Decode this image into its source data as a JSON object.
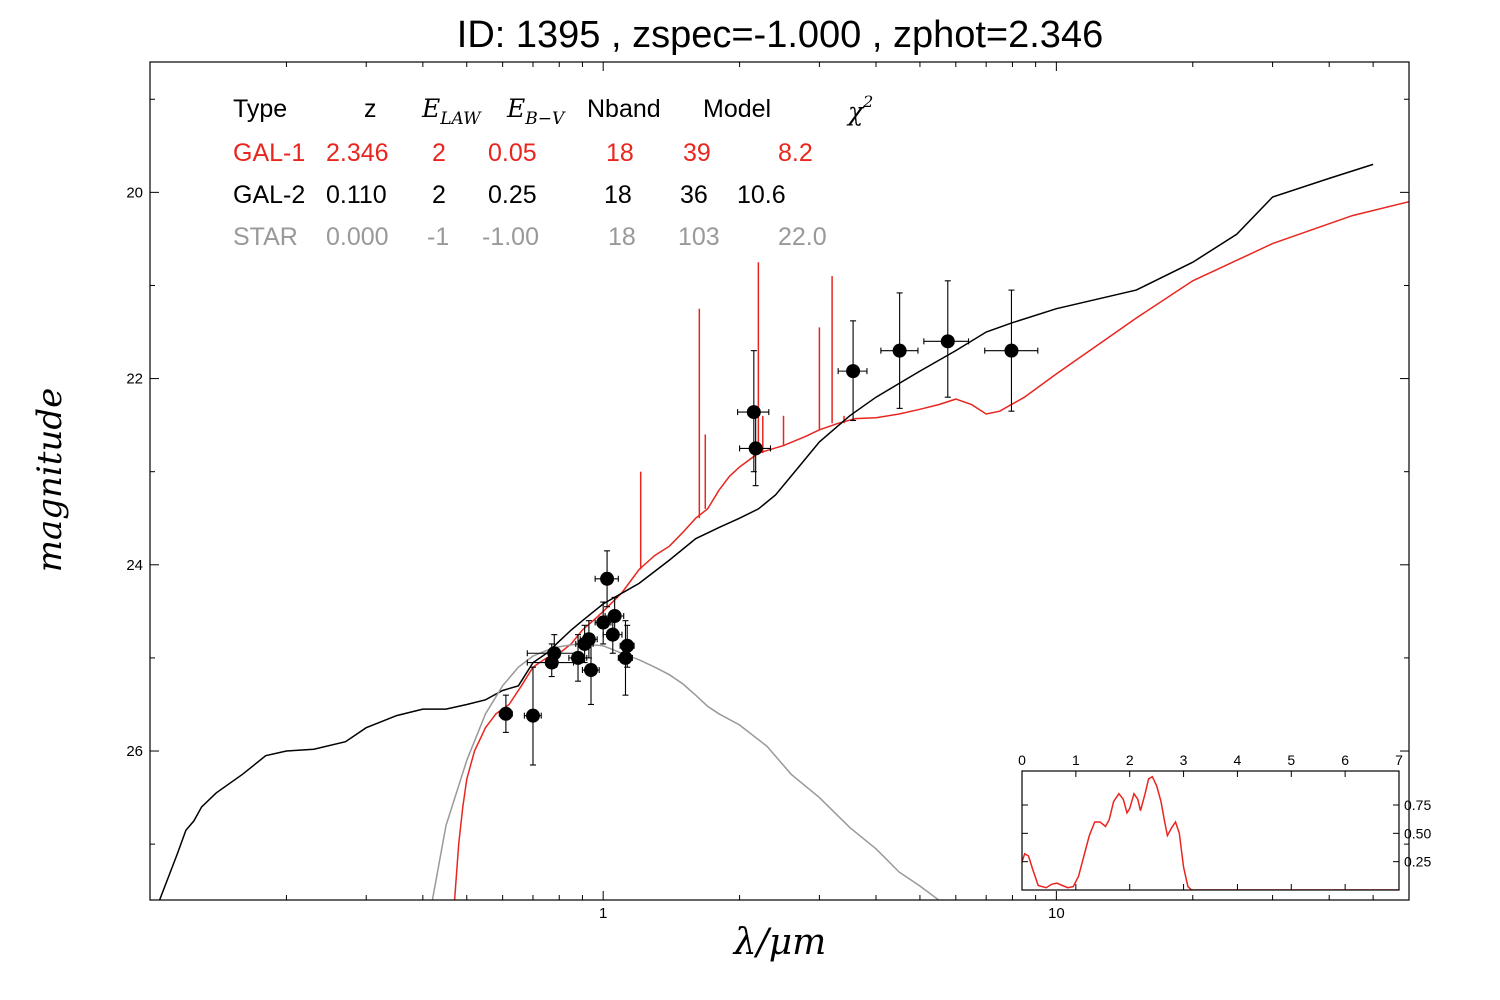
{
  "chart_data": {
    "type": "scatter",
    "title": "ID:  1395  , zspec=-1.000 , zphot=2.346",
    "xlabel": "λ/μm",
    "ylabel": "magnitude",
    "xscale": "log",
    "yaxis_inverted": true,
    "xlim": [
      0.1,
      60
    ],
    "ylim": [
      27.6,
      18.6
    ],
    "xticks": [
      {
        "value": 1,
        "label": "1"
      },
      {
        "value": 10,
        "label": "10"
      }
    ],
    "yticks": [
      {
        "value": 20,
        "label": "20"
      },
      {
        "value": 22,
        "label": "22"
      },
      {
        "value": 24,
        "label": "24"
      },
      {
        "value": 26,
        "label": "26"
      }
    ],
    "colors": {
      "gal1": "#e8261f",
      "gal2": "#000000",
      "star": "#999999",
      "points": "#000000"
    },
    "legend_table": {
      "headers": [
        "Type",
        "z",
        "E_LAW",
        "E_B−V",
        "Nband",
        "Model",
        "χ²"
      ],
      "header_e_law": {
        "base": "E",
        "sub": "LAW"
      },
      "header_ebv": {
        "base": "E",
        "sub": "B−V"
      },
      "header_chi": {
        "base": "χ",
        "sup": "2"
      },
      "rows": [
        {
          "type": "GAL-1",
          "z": "2.346",
          "elaw": "2",
          "ebv": "0.05",
          "nband": "18",
          "model": "39",
          "chi2": "8.2",
          "color": "#e8261f"
        },
        {
          "type": "GAL-2",
          "z": "0.110",
          "elaw": "2",
          "ebv": "0.25",
          "nband": "18",
          "model": "36",
          "chi2": "10.6",
          "color": "#000000"
        },
        {
          "type": "STAR",
          "z": "0.000",
          "elaw": "-1",
          "ebv": "-1.00",
          "nband": "18",
          "model": "103",
          "chi2": "22.0",
          "color": "#999999"
        }
      ]
    },
    "series": [
      {
        "name": "GAL-1",
        "kind": "line",
        "points": [
          [
            0.47,
            27.6
          ],
          [
            0.48,
            27.0
          ],
          [
            0.49,
            26.6
          ],
          [
            0.5,
            26.3
          ],
          [
            0.52,
            26.0
          ],
          [
            0.55,
            25.75
          ],
          [
            0.58,
            25.6
          ],
          [
            0.62,
            25.5
          ],
          [
            0.66,
            25.3
          ],
          [
            0.7,
            25.1
          ],
          [
            0.75,
            25.0
          ],
          [
            0.8,
            24.95
          ],
          [
            0.85,
            24.85
          ],
          [
            0.9,
            24.7
          ],
          [
            0.95,
            24.6
          ],
          [
            1.0,
            24.5
          ],
          [
            1.1,
            24.3
          ],
          [
            1.2,
            24.05
          ],
          [
            1.3,
            23.9
          ],
          [
            1.4,
            23.8
          ],
          [
            1.5,
            23.65
          ],
          [
            1.6,
            23.5
          ],
          [
            1.7,
            23.4
          ],
          [
            1.8,
            23.2
          ],
          [
            1.9,
            23.05
          ],
          [
            2.0,
            22.95
          ],
          [
            2.2,
            22.8
          ],
          [
            2.5,
            22.72
          ],
          [
            2.8,
            22.62
          ],
          [
            3.0,
            22.55
          ],
          [
            3.3,
            22.48
          ],
          [
            3.6,
            22.43
          ],
          [
            4.0,
            22.42
          ],
          [
            4.5,
            22.38
          ],
          [
            5.0,
            22.33
          ],
          [
            5.5,
            22.28
          ],
          [
            6.0,
            22.22
          ],
          [
            6.5,
            22.28
          ],
          [
            7.0,
            22.38
          ],
          [
            7.5,
            22.35
          ],
          [
            8.5,
            22.2
          ],
          [
            10,
            21.95
          ],
          [
            15,
            21.35
          ],
          [
            20,
            20.95
          ],
          [
            30,
            20.55
          ],
          [
            45,
            20.25
          ],
          [
            60,
            20.1
          ]
        ],
        "lines": [
          [
            1.21,
            23.0
          ],
          [
            1.63,
            21.25
          ],
          [
            1.68,
            22.6
          ],
          [
            2.2,
            20.75
          ],
          [
            2.25,
            22.4
          ],
          [
            2.5,
            22.4
          ],
          [
            3.0,
            21.45
          ],
          [
            3.2,
            20.9
          ],
          [
            3.4,
            22.4
          ]
        ]
      },
      {
        "name": "GAL-2",
        "kind": "line",
        "points": [
          [
            0.105,
            27.6
          ],
          [
            0.115,
            27.1
          ],
          [
            0.12,
            26.85
          ],
          [
            0.125,
            26.75
          ],
          [
            0.13,
            26.6
          ],
          [
            0.14,
            26.45
          ],
          [
            0.16,
            26.25
          ],
          [
            0.18,
            26.05
          ],
          [
            0.2,
            26.0
          ],
          [
            0.23,
            25.98
          ],
          [
            0.27,
            25.9
          ],
          [
            0.3,
            25.75
          ],
          [
            0.35,
            25.62
          ],
          [
            0.4,
            25.55
          ],
          [
            0.45,
            25.55
          ],
          [
            0.5,
            25.5
          ],
          [
            0.55,
            25.45
          ],
          [
            0.6,
            25.35
          ],
          [
            0.65,
            25.3
          ],
          [
            0.7,
            25.05
          ],
          [
            0.75,
            24.95
          ],
          [
            0.8,
            24.82
          ],
          [
            0.85,
            24.7
          ],
          [
            0.9,
            24.6
          ],
          [
            1.0,
            24.42
          ],
          [
            1.2,
            24.2
          ],
          [
            1.4,
            23.95
          ],
          [
            1.6,
            23.72
          ],
          [
            1.8,
            23.6
          ],
          [
            2.0,
            23.5
          ],
          [
            2.2,
            23.4
          ],
          [
            2.4,
            23.25
          ],
          [
            2.7,
            22.95
          ],
          [
            3.0,
            22.68
          ],
          [
            3.5,
            22.4
          ],
          [
            4.0,
            22.2
          ],
          [
            5.0,
            21.92
          ],
          [
            6.0,
            21.7
          ],
          [
            7.0,
            21.5
          ],
          [
            8.0,
            21.4
          ],
          [
            10,
            21.25
          ],
          [
            15,
            21.05
          ],
          [
            20,
            20.75
          ],
          [
            25,
            20.45
          ],
          [
            30,
            20.05
          ],
          [
            40,
            19.85
          ],
          [
            50,
            19.7
          ]
        ]
      },
      {
        "name": "STAR",
        "kind": "line",
        "points": [
          [
            0.42,
            27.6
          ],
          [
            0.45,
            26.8
          ],
          [
            0.5,
            26.1
          ],
          [
            0.55,
            25.6
          ],
          [
            0.6,
            25.3
          ],
          [
            0.65,
            25.1
          ],
          [
            0.7,
            24.98
          ],
          [
            0.75,
            24.92
          ],
          [
            0.8,
            24.88
          ],
          [
            0.85,
            24.86
          ],
          [
            0.9,
            24.85
          ],
          [
            1.0,
            24.87
          ],
          [
            1.1,
            24.95
          ],
          [
            1.2,
            25.02
          ],
          [
            1.3,
            25.1
          ],
          [
            1.4,
            25.18
          ],
          [
            1.5,
            25.28
          ],
          [
            1.6,
            25.4
          ],
          [
            1.7,
            25.52
          ],
          [
            1.8,
            25.6
          ],
          [
            2.0,
            25.72
          ],
          [
            2.3,
            25.95
          ],
          [
            2.6,
            26.25
          ],
          [
            3.0,
            26.5
          ],
          [
            3.5,
            26.82
          ],
          [
            4.0,
            27.05
          ],
          [
            4.5,
            27.3
          ],
          [
            5.0,
            27.45
          ],
          [
            5.5,
            27.6
          ]
        ]
      }
    ],
    "points": [
      {
        "x": 0.61,
        "y": 25.6,
        "xerr": [
          0.59,
          0.63
        ],
        "yerr": [
          25.4,
          25.8
        ]
      },
      {
        "x": 0.7,
        "y": 25.62,
        "xerr": [
          0.67,
          0.73
        ],
        "yerr": [
          25.1,
          26.15
        ]
      },
      {
        "x": 0.77,
        "y": 25.05,
        "xerr": [
          0.68,
          0.86
        ],
        "yerr": [
          24.85,
          25.2
        ]
      },
      {
        "x": 0.78,
        "y": 24.95,
        "xerr": [
          0.68,
          0.88
        ],
        "yerr": [
          24.75,
          25.1
        ]
      },
      {
        "x": 0.88,
        "y": 25.0,
        "xerr": [
          0.84,
          0.92
        ],
        "yerr": [
          24.75,
          25.25
        ]
      },
      {
        "x": 0.91,
        "y": 24.85,
        "xerr": [
          0.87,
          0.95
        ],
        "yerr": [
          24.65,
          25.05
        ]
      },
      {
        "x": 0.93,
        "y": 24.8,
        "xerr": [
          0.89,
          0.97
        ],
        "yerr": [
          24.6,
          25.0
        ]
      },
      {
        "x": 0.94,
        "y": 25.13,
        "xerr": [
          0.9,
          0.98
        ],
        "yerr": [
          24.75,
          25.5
        ]
      },
      {
        "x": 1.0,
        "y": 24.62,
        "xerr": [
          0.96,
          1.04
        ],
        "yerr": [
          24.4,
          24.85
        ]
      },
      {
        "x": 1.02,
        "y": 24.15,
        "xerr": [
          0.96,
          1.08
        ],
        "yerr": [
          23.85,
          24.45
        ]
      },
      {
        "x": 1.05,
        "y": 24.75,
        "xerr": [
          1.0,
          1.1
        ],
        "yerr": [
          24.55,
          24.95
        ]
      },
      {
        "x": 1.06,
        "y": 24.55,
        "xerr": [
          1.01,
          1.11
        ],
        "yerr": [
          24.35,
          24.75
        ]
      },
      {
        "x": 1.12,
        "y": 25.0,
        "xerr": [
          1.08,
          1.16
        ],
        "yerr": [
          24.6,
          25.4
        ]
      },
      {
        "x": 1.13,
        "y": 24.87,
        "xerr": [
          1.09,
          1.17
        ],
        "yerr": [
          24.65,
          25.1
        ]
      },
      {
        "x": 2.15,
        "y": 22.36,
        "xerr": [
          1.98,
          2.32
        ],
        "yerr": [
          21.7,
          23.0
        ]
      },
      {
        "x": 2.17,
        "y": 22.75,
        "xerr": [
          2.0,
          2.34
        ],
        "yerr": [
          22.35,
          23.15
        ]
      },
      {
        "x": 3.56,
        "y": 21.92,
        "xerr": [
          3.3,
          3.82
        ],
        "yerr": [
          21.38,
          22.45
        ]
      },
      {
        "x": 4.51,
        "y": 21.7,
        "xerr": [
          4.1,
          4.95
        ],
        "yerr": [
          21.08,
          22.32
        ]
      },
      {
        "x": 5.76,
        "y": 21.6,
        "xerr": [
          5.1,
          6.4
        ],
        "yerr": [
          20.95,
          22.2
        ]
      },
      {
        "x": 7.96,
        "y": 21.7,
        "xerr": [
          6.95,
          9.1
        ],
        "yerr": [
          21.05,
          22.35
        ]
      }
    ],
    "inset": {
      "type": "line",
      "xlim": [
        0,
        7
      ],
      "ylim": [
        0,
        1.05
      ],
      "xticks": [
        "0",
        "1",
        "2",
        "3",
        "4",
        "5",
        "6",
        "7"
      ],
      "yticks": [
        {
          "value": 0.25,
          "label": "0.25"
        },
        {
          "value": 0.5,
          "label": "0.50"
        },
        {
          "value": 0.75,
          "label": "0.75"
        }
      ],
      "points": [
        [
          0,
          0.25
        ],
        [
          0.05,
          0.32
        ],
        [
          0.12,
          0.3
        ],
        [
          0.2,
          0.18
        ],
        [
          0.3,
          0.04
        ],
        [
          0.45,
          0.02
        ],
        [
          0.55,
          0.05
        ],
        [
          0.65,
          0.06
        ],
        [
          0.75,
          0.04
        ],
        [
          0.85,
          0.02
        ],
        [
          0.95,
          0.03
        ],
        [
          1.05,
          0.12
        ],
        [
          1.15,
          0.3
        ],
        [
          1.25,
          0.48
        ],
        [
          1.35,
          0.6
        ],
        [
          1.45,
          0.6
        ],
        [
          1.55,
          0.56
        ],
        [
          1.62,
          0.62
        ],
        [
          1.7,
          0.78
        ],
        [
          1.8,
          0.85
        ],
        [
          1.88,
          0.8
        ],
        [
          1.95,
          0.68
        ],
        [
          2.0,
          0.72
        ],
        [
          2.08,
          0.85
        ],
        [
          2.15,
          0.8
        ],
        [
          2.2,
          0.7
        ],
        [
          2.28,
          0.84
        ],
        [
          2.35,
          0.98
        ],
        [
          2.42,
          1.0
        ],
        [
          2.5,
          0.92
        ],
        [
          2.58,
          0.78
        ],
        [
          2.65,
          0.6
        ],
        [
          2.7,
          0.48
        ],
        [
          2.78,
          0.55
        ],
        [
          2.85,
          0.6
        ],
        [
          2.92,
          0.5
        ],
        [
          3.0,
          0.2
        ],
        [
          3.08,
          0.03
        ],
        [
          3.15,
          0.0
        ],
        [
          7,
          0.0
        ]
      ]
    }
  }
}
